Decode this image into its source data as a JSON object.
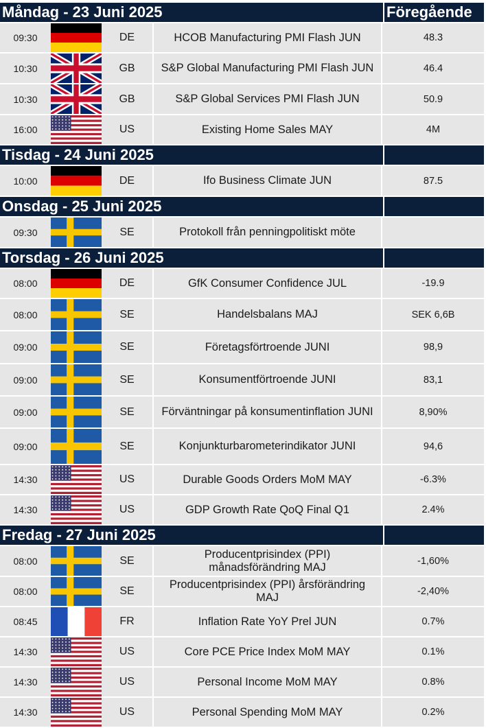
{
  "header": {
    "prev_label": "Föregående"
  },
  "days": [
    {
      "title": "Måndag - 23 Juni 2025",
      "rows": [
        {
          "time": "09:30",
          "flag": "de-flag-icon",
          "cc": "DE",
          "event": "HCOB Manufacturing PMI Flash JUN",
          "prev": "48.3",
          "h": 42
        },
        {
          "time": "10:30",
          "flag": "gb-flag-icon",
          "cc": "GB",
          "event": "S&P Global Manufacturing PMI Flash JUN",
          "prev": "46.4",
          "h": 43
        },
        {
          "time": "10:30",
          "flag": "gb-flag-icon",
          "cc": "GB",
          "event": "S&P Global Services PMI Flash JUN",
          "prev": "50.9",
          "h": 43
        },
        {
          "time": "16:00",
          "flag": "us-flag-icon",
          "cc": "US",
          "event": "Existing Home Sales MAY",
          "prev": "4M",
          "h": 42
        }
      ]
    },
    {
      "title": "Tisdag - 24 Juni 2025",
      "rows": [
        {
          "time": "10:00",
          "flag": "de-flag-icon",
          "cc": "DE",
          "event": "Ifo Business Climate JUN",
          "prev": "87.5",
          "h": 43
        }
      ]
    },
    {
      "title": "Onsdag - 25 Juni 2025",
      "rows": [
        {
          "time": "09:30",
          "flag": "se-flag-icon",
          "cc": "SE",
          "event": "Protokoll från penningpolitiskt möte",
          "prev": "",
          "h": 43
        }
      ]
    },
    {
      "title": "Torsdag - 26 Juni 2025",
      "rows": [
        {
          "time": "08:00",
          "flag": "de-flag-icon",
          "cc": "DE",
          "event": "GfK Consumer Confidence JUL",
          "prev": "-19.9",
          "h": 42
        },
        {
          "time": "08:00",
          "flag": "se-flag-icon",
          "cc": "SE",
          "event": "Handelsbalans MAJ",
          "prev": "SEK 6,6B",
          "h": 45
        },
        {
          "time": "09:00",
          "flag": "se-flag-icon",
          "cc": "SE",
          "event": "Företagsförtroende JUNI",
          "prev": "98,9",
          "h": 46
        },
        {
          "time": "09:00",
          "flag": "se-flag-icon",
          "cc": "SE",
          "event": "Konsumentförtroende JUNI",
          "prev": "83,1",
          "h": 45
        },
        {
          "time": "09:00",
          "flag": "se-flag-icon",
          "cc": "SE",
          "event": "Förväntningar på konsumentinflation JUNI",
          "prev": "8,90%",
          "h": 45
        },
        {
          "time": "09:00",
          "flag": "se-flag-icon",
          "cc": "SE",
          "event": "Konjunkturbarometerindikator JUNI",
          "prev": "94,6",
          "h": 51
        },
        {
          "time": "14:30",
          "flag": "us-flag-icon",
          "cc": "US",
          "event": "Durable Goods Orders MoM MAY",
          "prev": "-6.3%",
          "h": 42
        },
        {
          "time": "14:30",
          "flag": "us-flag-icon",
          "cc": "US",
          "event": "GDP Growth Rate QoQ Final Q1",
          "prev": "2.4%",
          "h": 42
        }
      ]
    },
    {
      "title": "Fredag - 27 Juni 2025",
      "rows": [
        {
          "time": "08:00",
          "flag": "se-flag-icon",
          "cc": "SE",
          "event": "Producentprisindex (PPI) månadsförändring MAJ",
          "prev": "-1,60%",
          "h": 43
        },
        {
          "time": "08:00",
          "flag": "se-flag-icon",
          "cc": "SE",
          "event": "Producentprisindex (PPI) årsförändring MAJ",
          "prev": "-2,40%",
          "h": 42
        },
        {
          "time": "08:45",
          "flag": "fr-flag-icon",
          "cc": "FR",
          "event": "Inflation Rate YoY Prel JUN",
          "prev": "0.7%",
          "h": 42
        },
        {
          "time": "14:30",
          "flag": "us-flag-icon",
          "cc": "US",
          "event": "Core PCE Price Index MoM MAY",
          "prev": "0.1%",
          "h": 42
        },
        {
          "time": "14:30",
          "flag": "us-flag-icon",
          "cc": "US",
          "event": "Personal Income MoM MAY",
          "prev": "0.8%",
          "h": 42
        },
        {
          "time": "14:30",
          "flag": "us-flag-icon",
          "cc": "US",
          "event": "Personal Spending MoM MAY",
          "prev": "0.2%",
          "h": 42
        }
      ]
    }
  ],
  "colors": {
    "header_bg": "#0b1f3a",
    "row_bg": "#e6e6e6"
  }
}
